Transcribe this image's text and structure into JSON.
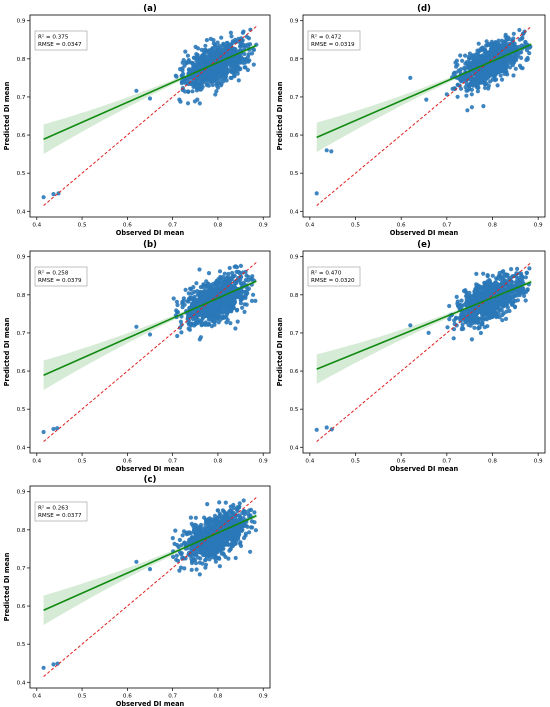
{
  "figure": {
    "xlabel": "Observed DI mean",
    "ylabel": "Predicted DI mean",
    "point_color": "#2a78b8",
    "fit_color": "#118a11",
    "band_color": "#cfe8cf",
    "identity_color": "#e02020"
  },
  "chart_data": [
    {
      "type": "scatter",
      "title": "(a)",
      "xlabel": "Observed DI mean",
      "ylabel": "Predicted DI mean",
      "xlim": [
        0.4,
        0.9
      ],
      "ylim": [
        0.4,
        0.9
      ],
      "xticks": [
        "0.4",
        "0.5",
        "0.6",
        "0.7",
        "0.8",
        "0.9"
      ],
      "yticks": [
        "0.4",
        "0.5",
        "0.6",
        "0.7",
        "0.8",
        "0.9"
      ],
      "stats": [
        "R² = 0.375",
        "RMSE = 0.0347"
      ],
      "fit": {
        "x": [
          0.415,
          0.885
        ],
        "y": [
          0.589,
          0.835
        ]
      },
      "outliers": [
        [
          0.415,
          0.437
        ],
        [
          0.437,
          0.445
        ],
        [
          0.448,
          0.447
        ],
        [
          0.62,
          0.716
        ],
        [
          0.65,
          0.696
        ],
        [
          0.715,
          0.693
        ],
        [
          0.76,
          0.683
        ],
        [
          0.735,
          0.735
        ],
        [
          0.84,
          0.775
        ],
        [
          0.86,
          0.79
        ]
      ],
      "cloud": {
        "x_range": [
          0.7,
          0.885
        ],
        "center": [
          0.795,
          0.785
        ],
        "slope": 0.5,
        "spread": 0.033
      }
    },
    {
      "type": "scatter",
      "title": "(b)",
      "xlabel": "Observed DI mean",
      "ylabel": "Predicted DI mean",
      "xlim": [
        0.4,
        0.9
      ],
      "ylim": [
        0.4,
        0.9
      ],
      "xticks": [
        "0.4",
        "0.5",
        "0.6",
        "0.7",
        "0.8",
        "0.9"
      ],
      "yticks": [
        "0.4",
        "0.5",
        "0.6",
        "0.7",
        "0.8",
        "0.9"
      ],
      "stats": [
        "R² = 0.258",
        "RMSE = 0.0379"
      ],
      "fit": {
        "x": [
          0.415,
          0.885
        ],
        "y": [
          0.589,
          0.836
        ]
      },
      "outliers": [
        [
          0.415,
          0.44
        ],
        [
          0.437,
          0.448
        ],
        [
          0.445,
          0.45
        ],
        [
          0.62,
          0.716
        ],
        [
          0.65,
          0.696
        ],
        [
          0.71,
          0.692
        ],
        [
          0.76,
          0.683
        ],
        [
          0.735,
          0.735
        ]
      ],
      "cloud": {
        "x_range": [
          0.7,
          0.885
        ],
        "center": [
          0.795,
          0.785
        ],
        "slope": 0.45,
        "spread": 0.035
      }
    },
    {
      "type": "scatter",
      "title": "(c)",
      "xlabel": "Observed DI mean",
      "ylabel": "Predicted DI mean",
      "xlim": [
        0.4,
        0.9
      ],
      "ylim": [
        0.4,
        0.9
      ],
      "xticks": [
        "0.4",
        "0.5",
        "0.6",
        "0.7",
        "0.8",
        "0.9"
      ],
      "yticks": [
        "0.4",
        "0.5",
        "0.6",
        "0.7",
        "0.8",
        "0.9"
      ],
      "stats": [
        "R² = 0.263",
        "RMSE = 0.0377"
      ],
      "fit": {
        "x": [
          0.415,
          0.885
        ],
        "y": [
          0.589,
          0.837
        ]
      },
      "outliers": [
        [
          0.415,
          0.438
        ],
        [
          0.437,
          0.447
        ],
        [
          0.446,
          0.449
        ],
        [
          0.62,
          0.716
        ],
        [
          0.65,
          0.697
        ],
        [
          0.715,
          0.693
        ],
        [
          0.76,
          0.683
        ],
        [
          0.735,
          0.735
        ]
      ],
      "cloud": {
        "x_range": [
          0.7,
          0.885
        ],
        "center": [
          0.795,
          0.785
        ],
        "slope": 0.45,
        "spread": 0.035
      }
    },
    {
      "type": "scatter",
      "title": "(d)",
      "xlabel": "Observed DI mean",
      "ylabel": "Predicted DI mean",
      "xlim": [
        0.4,
        0.9
      ],
      "ylim": [
        0.4,
        0.9
      ],
      "xticks": [
        "0.4",
        "0.5",
        "0.6",
        "0.7",
        "0.8",
        "0.9"
      ],
      "yticks": [
        "0.4",
        "0.5",
        "0.6",
        "0.7",
        "0.8",
        "0.9"
      ],
      "stats": [
        "R² = 0.472",
        "RMSE = 0.0319"
      ],
      "fit": {
        "x": [
          0.415,
          0.885
        ],
        "y": [
          0.594,
          0.838
        ]
      },
      "outliers": [
        [
          0.415,
          0.447
        ],
        [
          0.437,
          0.56
        ],
        [
          0.447,
          0.557
        ],
        [
          0.62,
          0.75
        ],
        [
          0.655,
          0.693
        ],
        [
          0.7,
          0.707
        ],
        [
          0.745,
          0.665
        ],
        [
          0.755,
          0.673
        ],
        [
          0.78,
          0.676
        ]
      ],
      "cloud": {
        "x_range": [
          0.7,
          0.885
        ],
        "center": [
          0.795,
          0.788
        ],
        "slope": 0.55,
        "spread": 0.033
      }
    },
    {
      "type": "scatter",
      "title": "(e)",
      "xlabel": "Observed DI mean",
      "ylabel": "Predicted DI mean",
      "xlim": [
        0.4,
        0.9
      ],
      "ylim": [
        0.4,
        0.9
      ],
      "xticks": [
        "0.4",
        "0.5",
        "0.6",
        "0.7",
        "0.8",
        "0.9"
      ],
      "yticks": [
        "0.4",
        "0.5",
        "0.6",
        "0.7",
        "0.8",
        "0.9"
      ],
      "stats": [
        "R² = 0.470",
        "RMSE = 0.0320"
      ],
      "fit": {
        "x": [
          0.415,
          0.885
        ],
        "y": [
          0.605,
          0.834
        ]
      },
      "outliers": [
        [
          0.415,
          0.446
        ],
        [
          0.437,
          0.452
        ],
        [
          0.448,
          0.447
        ],
        [
          0.62,
          0.72
        ],
        [
          0.66,
          0.7
        ],
        [
          0.715,
          0.686
        ],
        [
          0.755,
          0.683
        ],
        [
          0.735,
          0.735
        ]
      ],
      "cloud": {
        "x_range": [
          0.7,
          0.885
        ],
        "center": [
          0.795,
          0.788
        ],
        "slope": 0.55,
        "spread": 0.033
      }
    }
  ]
}
